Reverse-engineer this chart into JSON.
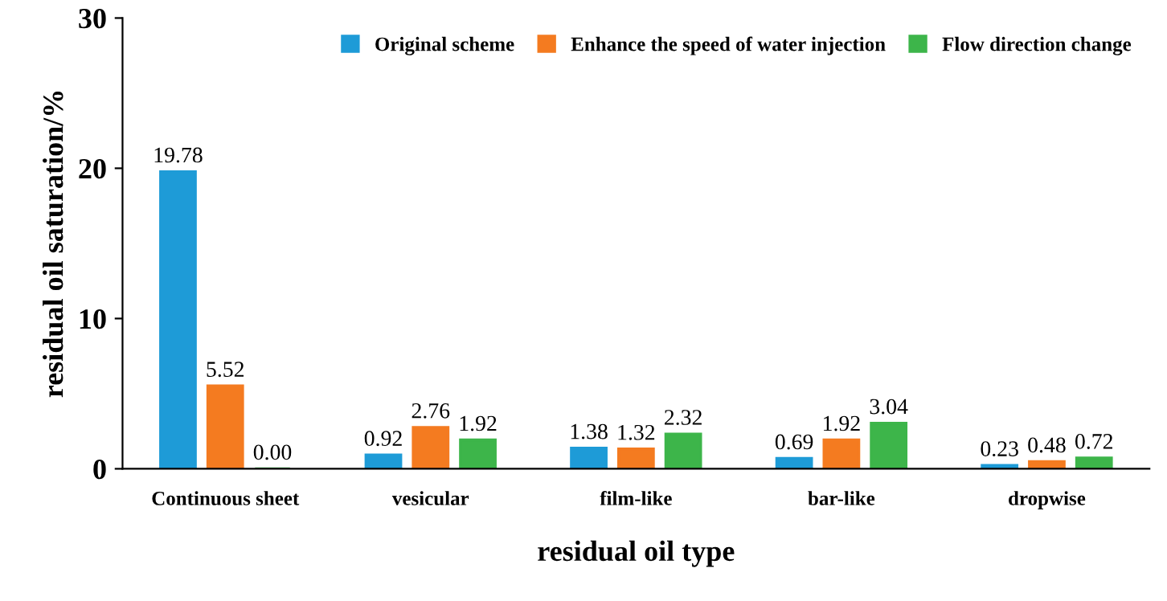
{
  "chart_data": {
    "type": "bar",
    "xlabel": "residual oil type",
    "ylabel": "residual oil saturation/%",
    "categories": [
      "Continuous sheet",
      "vesicular",
      "film-like",
      "bar-like",
      "dropwise"
    ],
    "series": [
      {
        "name": "Original scheme",
        "color": "#1e9bd7",
        "values": [
          19.78,
          0.92,
          1.38,
          0.69,
          0.23
        ],
        "value_labels": [
          "19.78",
          "0.92",
          "1.38",
          "0.69",
          "0.23"
        ]
      },
      {
        "name": "Enhance the speed of water injection",
        "color": "#f47b20",
        "values": [
          5.52,
          2.76,
          1.32,
          1.92,
          0.48
        ],
        "value_labels": [
          "5.52",
          "2.76",
          "1.32",
          "1.92",
          "0.48"
        ]
      },
      {
        "name": "Flow direction change",
        "color": "#3db54a",
        "values": [
          0.0,
          1.92,
          2.32,
          3.04,
          0.72
        ],
        "value_labels": [
          "0.00",
          "1.92",
          "2.32",
          "3.04",
          "0.72"
        ]
      }
    ],
    "ylim": [
      0,
      30
    ],
    "yticks": [
      0,
      10,
      20,
      30
    ],
    "grid": false,
    "legend": "top right"
  }
}
